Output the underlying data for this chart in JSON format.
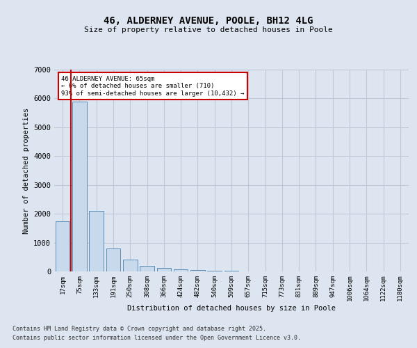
{
  "title": "46, ALDERNEY AVENUE, POOLE, BH12 4LG",
  "subtitle": "Size of property relative to detached houses in Poole",
  "xlabel": "Distribution of detached houses by size in Poole",
  "ylabel": "Number of detached properties",
  "categories": [
    "17sqm",
    "75sqm",
    "133sqm",
    "191sqm",
    "250sqm",
    "308sqm",
    "366sqm",
    "424sqm",
    "482sqm",
    "540sqm",
    "599sqm",
    "657sqm",
    "715sqm",
    "773sqm",
    "831sqm",
    "889sqm",
    "947sqm",
    "1006sqm",
    "1064sqm",
    "1122sqm",
    "1180sqm"
  ],
  "values": [
    1750,
    5900,
    2100,
    800,
    400,
    200,
    125,
    80,
    55,
    30,
    15,
    8,
    5,
    3,
    2,
    1,
    1,
    0,
    0,
    0,
    0
  ],
  "bar_color": "#c9d9ec",
  "bar_edge_color": "#5b8db8",
  "property_line_color": "#cc0000",
  "annotation_box_color": "#ffffff",
  "annotation_box_edge": "#cc0000",
  "property_label": "46 ALDERNEY AVENUE: 65sqm",
  "smaller_pct": "6%",
  "smaller_n": "710",
  "larger_pct": "93%",
  "larger_n": "10,432",
  "ylim": [
    0,
    7000
  ],
  "yticks": [
    0,
    1000,
    2000,
    3000,
    4000,
    5000,
    6000,
    7000
  ],
  "grid_color": "#c0c8d8",
  "background_color": "#dde5f0",
  "fig_background_color": "#dde5f0",
  "footer1": "Contains HM Land Registry data © Crown copyright and database right 2025.",
  "footer2": "Contains public sector information licensed under the Open Government Licence v3.0."
}
